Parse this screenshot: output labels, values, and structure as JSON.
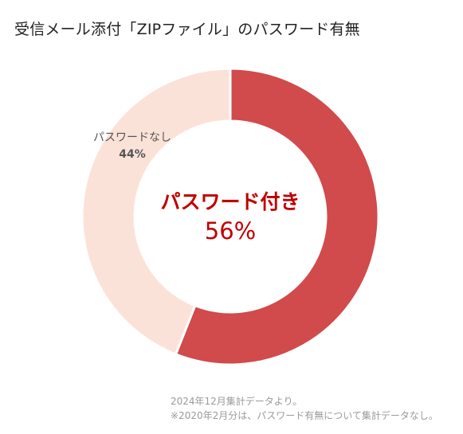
{
  "title": "受信メール添付「ZIPファイル」のパスワード有無",
  "chart_data": {
    "type": "pie",
    "style": "donut",
    "series": [
      {
        "name": "パスワード付き",
        "value": 56,
        "label": "56%",
        "color": "#d14a4c"
      },
      {
        "name": "パスワードなし",
        "value": 44,
        "label": "44%",
        "color": "#fbe2d8"
      }
    ],
    "center_label": {
      "name": "パスワード付き",
      "value": "56%",
      "color": "#c00000"
    },
    "outer_label": {
      "name": "パスワードなし",
      "value": "44%"
    },
    "start_angle": "12 o'clock",
    "direction": "clockwise"
  },
  "footnotes": [
    "2024年12月集計データより。",
    "※2020年2月分は、パスワード有無について集計データなし。"
  ]
}
